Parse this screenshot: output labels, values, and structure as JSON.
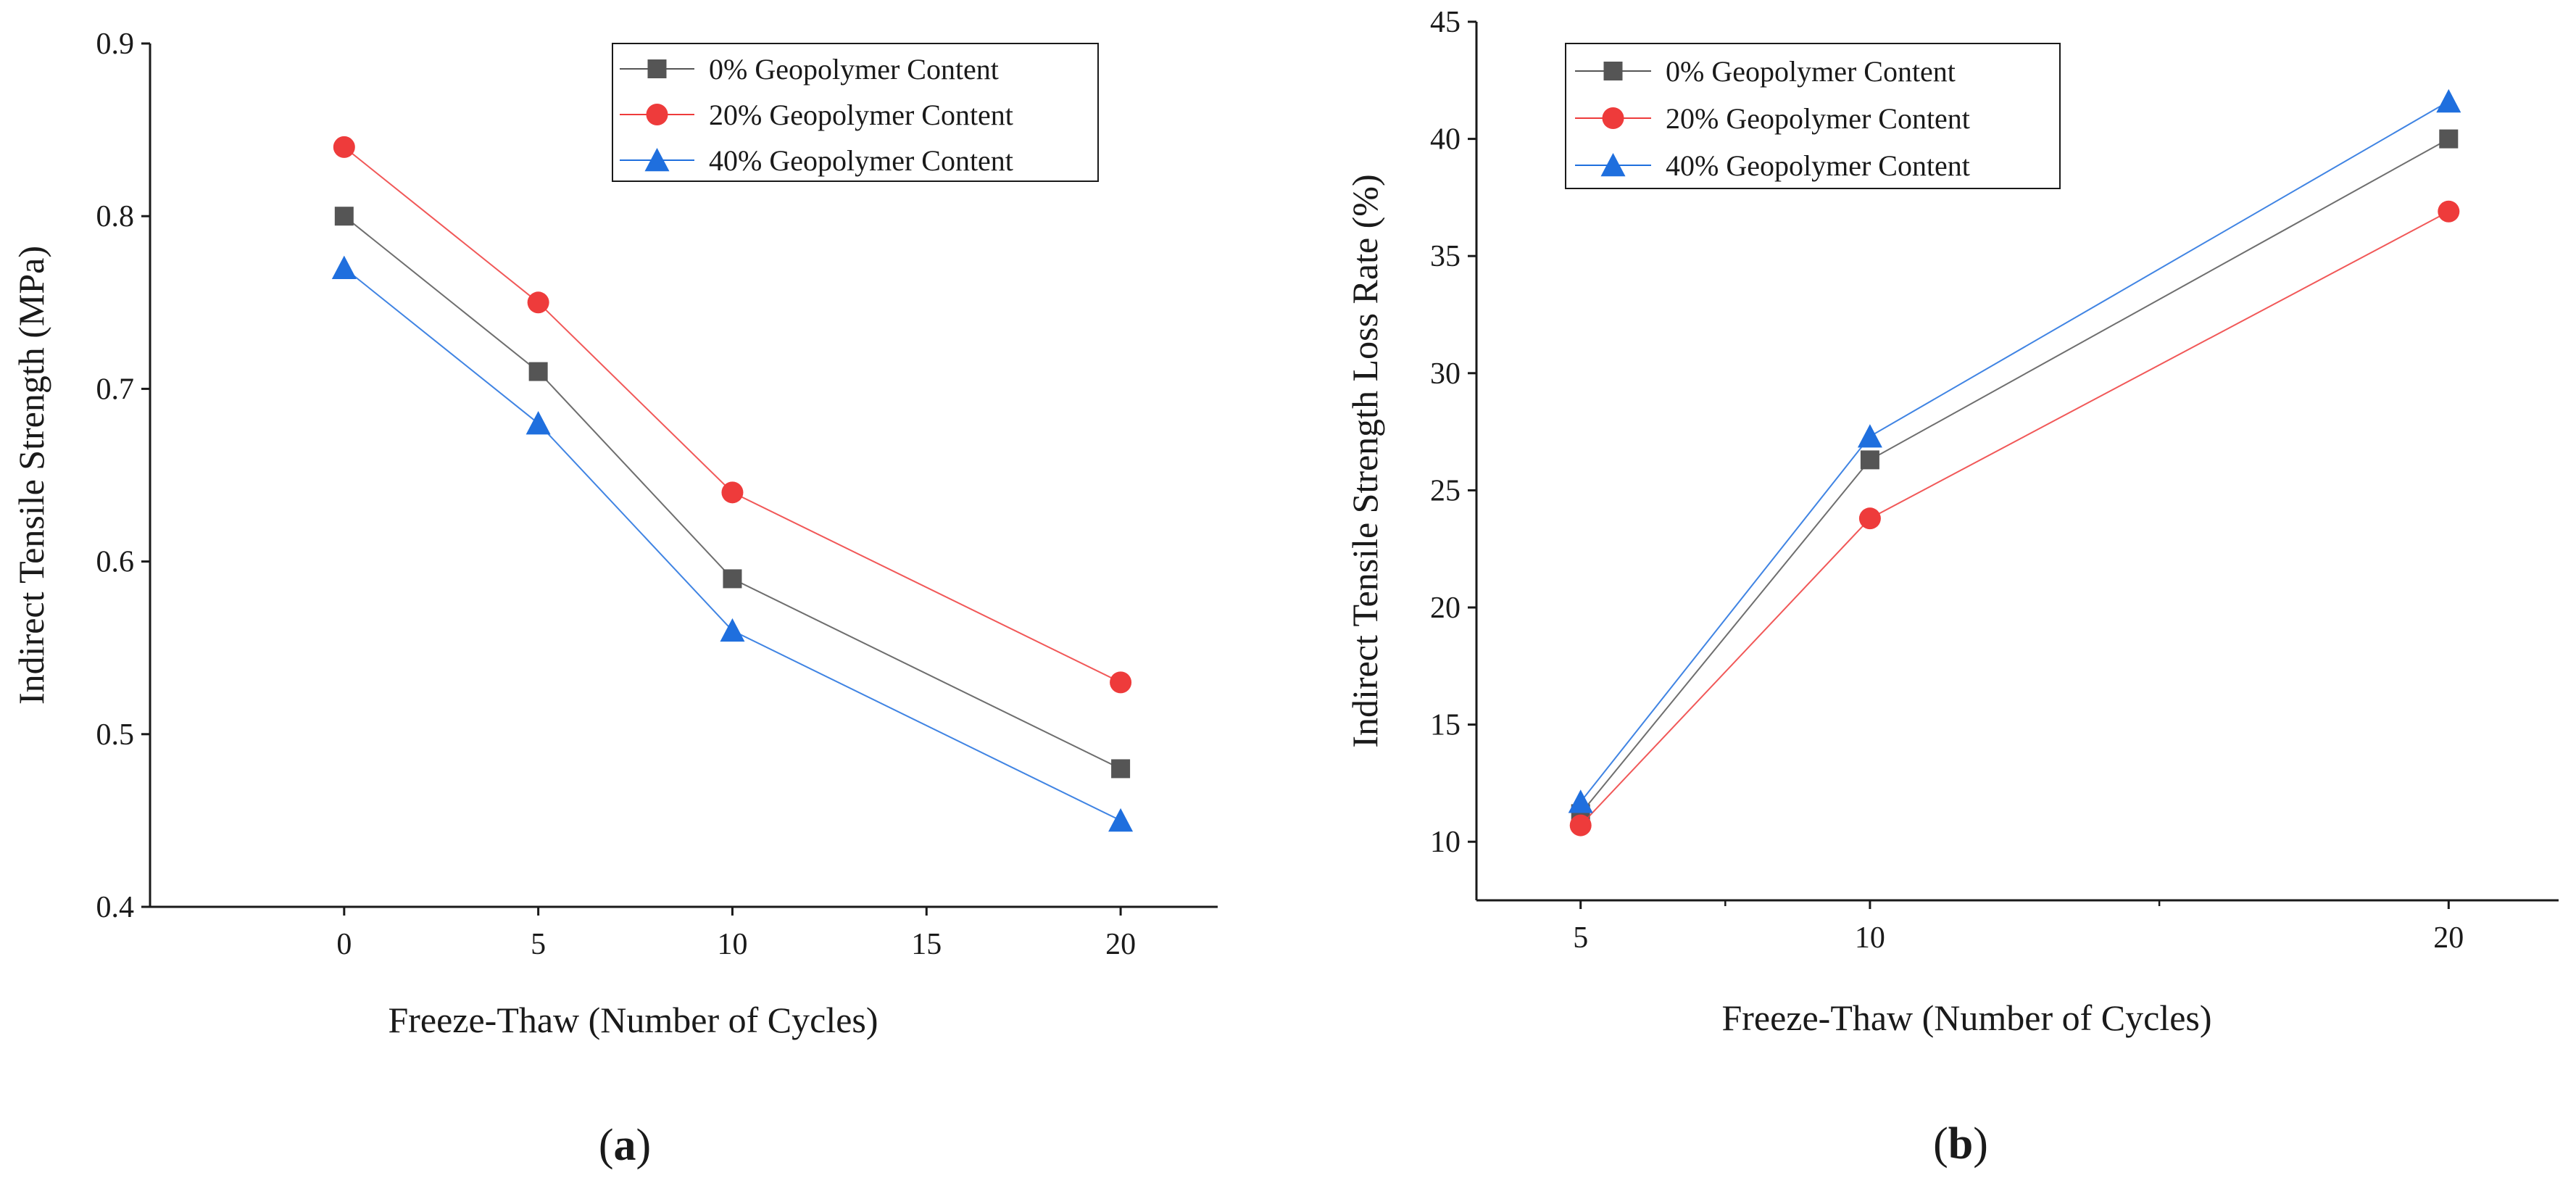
{
  "chart_data": [
    {
      "type": "line",
      "panel_label": "a",
      "xlabel": "Freeze-Thaw (Number of Cycles)",
      "ylabel": "Indirect Tensile Strength (MPa)",
      "xlim": [
        -5,
        22.5
      ],
      "ylim": [
        0.4,
        0.9
      ],
      "xticks": [
        0,
        5,
        10,
        15,
        20
      ],
      "yticks": [
        0.4,
        0.5,
        0.6,
        0.7,
        0.8,
        0.9
      ],
      "ytick_labels": [
        "0.4",
        "0.5",
        "0.6",
        "0.7",
        "0.8",
        "0.9"
      ],
      "legend_position": "top-right",
      "grid": false,
      "x": [
        0,
        5,
        10,
        20
      ],
      "series": [
        {
          "name": "0% Geopolymer Content",
          "marker": "square",
          "color": "#555555",
          "values": [
            0.8,
            0.71,
            0.59,
            0.48
          ]
        },
        {
          "name": "20% Geopolymer Content",
          "marker": "circle",
          "color": "#ee3b3b",
          "values": [
            0.84,
            0.75,
            0.64,
            0.53
          ]
        },
        {
          "name": "40% Geopolymer Content",
          "marker": "triangle",
          "color": "#1f6fde",
          "values": [
            0.77,
            0.68,
            0.56,
            0.45
          ]
        }
      ]
    },
    {
      "type": "line",
      "panel_label": "b",
      "xlabel": "Freeze-Thaw (Number of Cycles)",
      "ylabel": "Indirect Tensile Strength Loss Rate (%)",
      "xlim": [
        3.2,
        21.9
      ],
      "ylim": [
        7.5,
        45
      ],
      "xticks": [
        5,
        10,
        20
      ],
      "minor_xticks": [
        7.5,
        15
      ],
      "yticks": [
        10,
        15,
        20,
        25,
        30,
        35,
        40,
        45
      ],
      "legend_position": "top-left",
      "grid": false,
      "x": [
        5,
        10,
        20
      ],
      "series": [
        {
          "name": "0% Geopolymer Content",
          "marker": "square",
          "color": "#555555",
          "values": [
            11.2,
            26.3,
            40.0
          ]
        },
        {
          "name": "20% Geopolymer Content",
          "marker": "circle",
          "color": "#ee3b3b",
          "values": [
            10.7,
            23.8,
            36.9
          ]
        },
        {
          "name": "40% Geopolymer Content",
          "marker": "triangle",
          "color": "#1f6fde",
          "values": [
            11.7,
            27.3,
            41.6
          ]
        }
      ]
    }
  ]
}
